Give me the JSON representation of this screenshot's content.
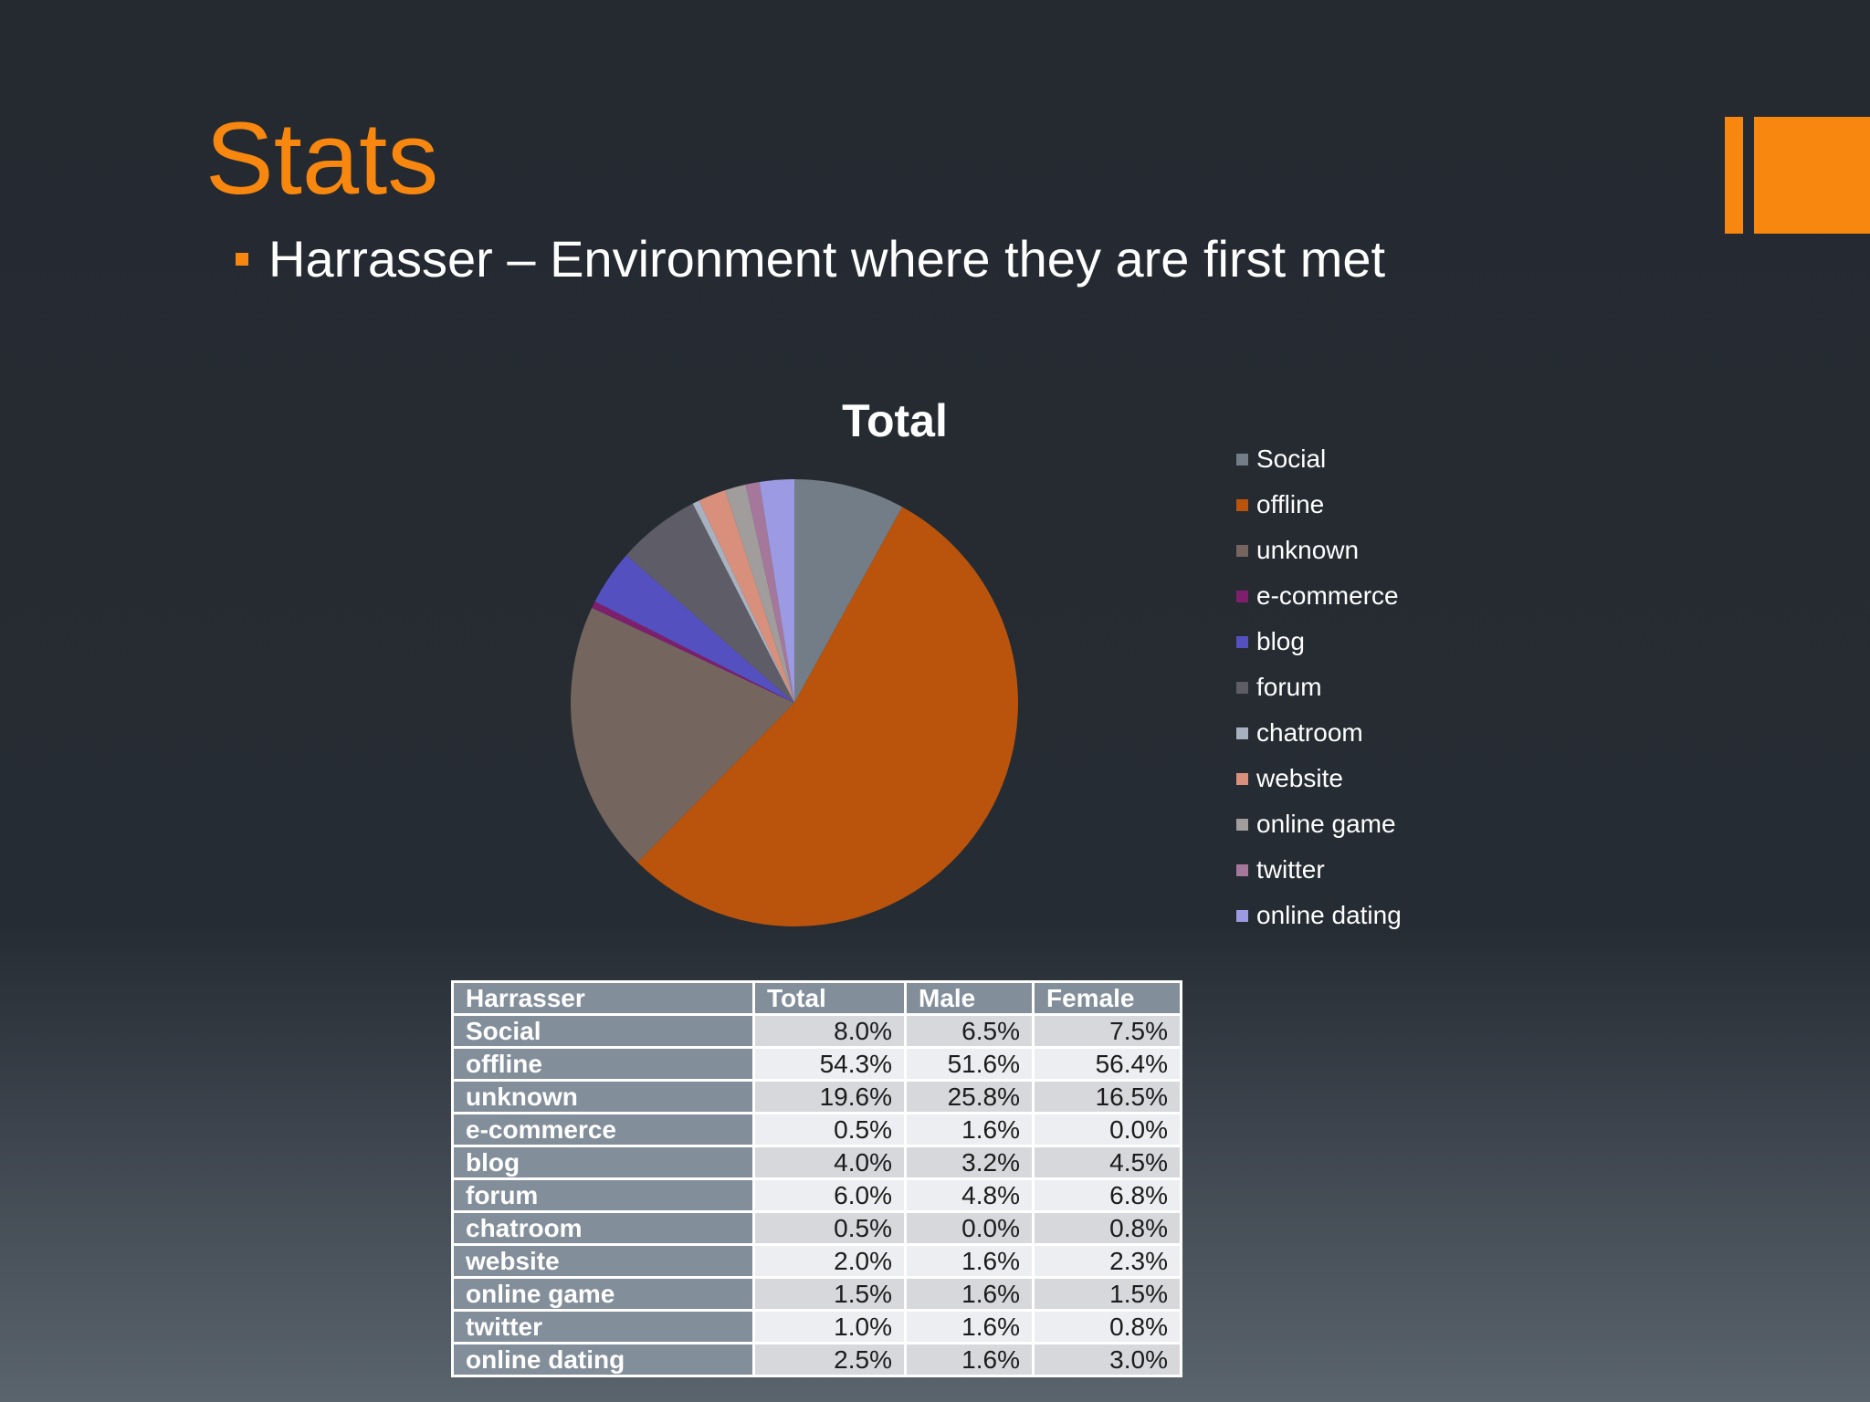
{
  "slide": {
    "title": "Stats",
    "bullet_text": "Harrasser – Environment where they are first met",
    "accent_color": "#f7870f"
  },
  "chart_data": {
    "type": "pie",
    "title": "Total",
    "legend_position": "right",
    "categories": [
      "Social",
      "offline",
      "unknown",
      "e-commerce",
      "blog",
      "forum",
      "chatroom",
      "website",
      "online game",
      "twitter",
      "online dating"
    ],
    "values": [
      8.0,
      54.3,
      19.6,
      0.5,
      4.0,
      6.0,
      0.5,
      2.0,
      1.5,
      1.0,
      2.5
    ],
    "colors": [
      "#727d88",
      "#ba530b",
      "#74655f",
      "#7e1f6e",
      "#5550c0",
      "#5e5c66",
      "#a7b1bf",
      "#d8907d",
      "#a09d9c",
      "#a5789b",
      "#9c9ae2"
    ]
  },
  "table": {
    "headers": [
      "Harrasser",
      "Total",
      "Male",
      "Female"
    ],
    "rows": [
      [
        "Social",
        "8.0%",
        "6.5%",
        "7.5%"
      ],
      [
        "offline",
        "54.3%",
        "51.6%",
        "56.4%"
      ],
      [
        "unknown",
        "19.6%",
        "25.8%",
        "16.5%"
      ],
      [
        "e-commerce",
        "0.5%",
        "1.6%",
        "0.0%"
      ],
      [
        "blog",
        "4.0%",
        "3.2%",
        "4.5%"
      ],
      [
        "forum",
        "6.0%",
        "4.8%",
        "6.8%"
      ],
      [
        "chatroom",
        "0.5%",
        "0.0%",
        "0.8%"
      ],
      [
        "website",
        "2.0%",
        "1.6%",
        "2.3%"
      ],
      [
        "online game",
        "1.5%",
        "1.6%",
        "1.5%"
      ],
      [
        "twitter",
        "1.0%",
        "1.6%",
        "0.8%"
      ],
      [
        "online dating",
        "2.5%",
        "1.6%",
        "3.0%"
      ]
    ]
  }
}
